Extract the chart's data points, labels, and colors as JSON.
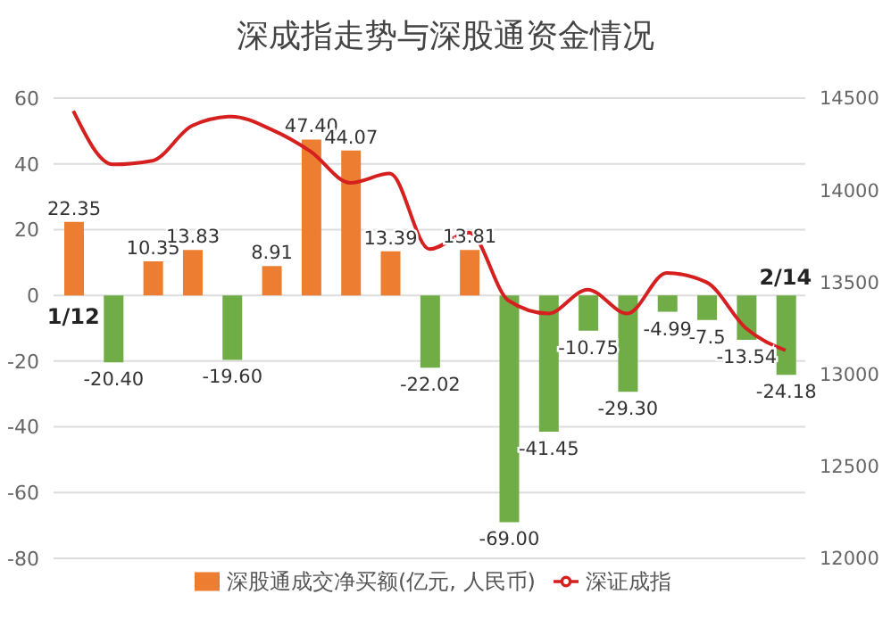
{
  "chart_data": {
    "type": "bar",
    "title": "深成指走势与深股通资金情况",
    "categories": [
      "1/12",
      null,
      null,
      null,
      null,
      null,
      null,
      null,
      null,
      null,
      null,
      null,
      null,
      null,
      null,
      null,
      null,
      null,
      "2/14"
    ],
    "series": [
      {
        "name": "深股通成交净买额(亿元, 人民币)",
        "color": "#ed7d31",
        "colors": [
          "#ed7d31",
          "#70ad47",
          "#ed7d31",
          "#ed7d31",
          "#70ad47",
          "#ed7d31",
          "#ed7d31",
          "#ed7d31",
          "#ed7d31",
          "#70ad47",
          "#ed7d31",
          "#70ad47",
          "#70ad47",
          "#70ad47",
          "#70ad47",
          "#70ad47",
          "#70ad47",
          "#70ad47",
          "#70ad47"
        ],
        "values": [
          22.35,
          -20.4,
          10.35,
          13.83,
          -19.6,
          8.91,
          47.4,
          44.07,
          13.39,
          -22.02,
          13.81,
          -69,
          -41.45,
          -10.75,
          -29.3,
          -4.99,
          -7.5,
          -13.54,
          -24.18
        ],
        "value_labels": [
          "22.35",
          "-20.40",
          "10.35",
          "13.83",
          "-19.60",
          "8.91",
          "47.40",
          "44.07",
          "13.39",
          "-22.02",
          "13.81",
          "-69.00",
          "-41.45",
          "-10.75",
          "-29.30",
          "-4.99",
          "-7.5",
          "-13.54",
          "-24.18"
        ]
      },
      {
        "name": "深证成指",
        "type": "line",
        "axis": "y2",
        "color": "#d62020",
        "values": [
          14430,
          14140,
          14160,
          14350,
          14400,
          14330,
          14210,
          14040,
          14090,
          13680,
          13770,
          13400,
          13330,
          13460,
          13330,
          13550,
          13500,
          13250,
          13130
        ]
      }
    ],
    "ylim": [
      -80,
      60
    ],
    "yticks": [
      -80,
      -60,
      -40,
      -20,
      0,
      20,
      40,
      60
    ],
    "y2lim": [
      12000,
      14500
    ],
    "y2ticks": [
      12000,
      12500,
      13000,
      13500,
      14000,
      14500
    ],
    "grid": "y",
    "legend": "bottom"
  }
}
